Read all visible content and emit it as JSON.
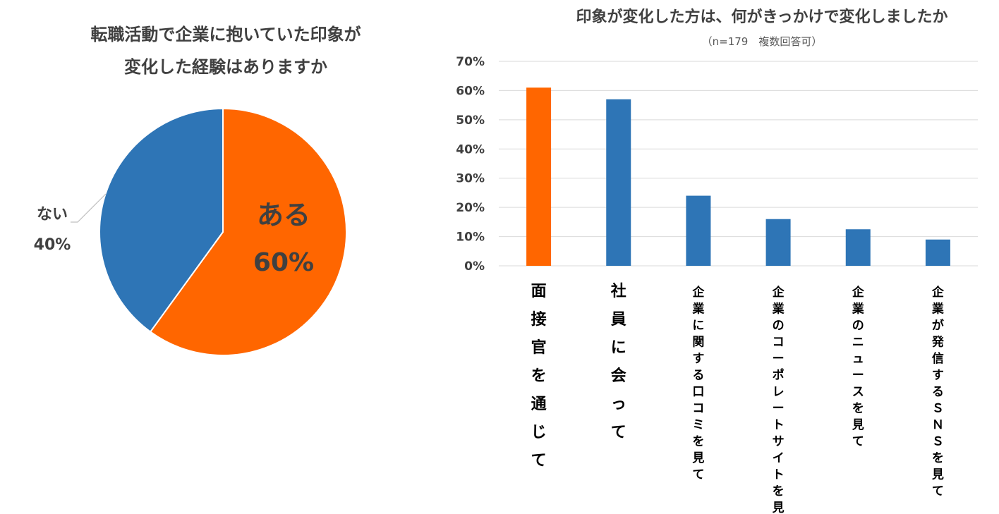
{
  "chart_data": [
    {
      "type": "pie",
      "title_lines": [
        "転職活動で企業に抱いていた印象が",
        "変化した経験はありますか"
      ],
      "slices": [
        {
          "label": "ある",
          "value": 60,
          "value_label": "60%",
          "color": "#FF6600"
        },
        {
          "label": "ない",
          "value": 40,
          "value_label": "40%",
          "color": "#2E75B6"
        }
      ],
      "label_placement": {
        "ある": "inside",
        "ない": "outside-left"
      }
    },
    {
      "type": "bar",
      "title": "印象が変化した方は、何がきっかけで変化しましたか",
      "subtitle": "（n=179　複数回答可）",
      "categories": [
        "面接官を通じて",
        "社員に会って",
        "企業に関する口コミを見て",
        "企業のコーポレートサイトを見て",
        "企業のニュースを見て",
        "企業が発信するＳＮＳを見て"
      ],
      "values": [
        61,
        57,
        24,
        16,
        12.5,
        9
      ],
      "bar_colors": [
        "#FF6600",
        "#2E75B6",
        "#2E75B6",
        "#2E75B6",
        "#2E75B6",
        "#2E75B6"
      ],
      "ylim": [
        0,
        70
      ],
      "yticks": [
        0,
        10,
        20,
        30,
        40,
        50,
        60,
        70
      ],
      "ytick_labels": [
        "0%",
        "10%",
        "20%",
        "30%",
        "40%",
        "50%",
        "60%",
        "70%"
      ],
      "grid": true,
      "xlabel": "",
      "ylabel": "",
      "category_label_orientation": "vertical"
    }
  ]
}
